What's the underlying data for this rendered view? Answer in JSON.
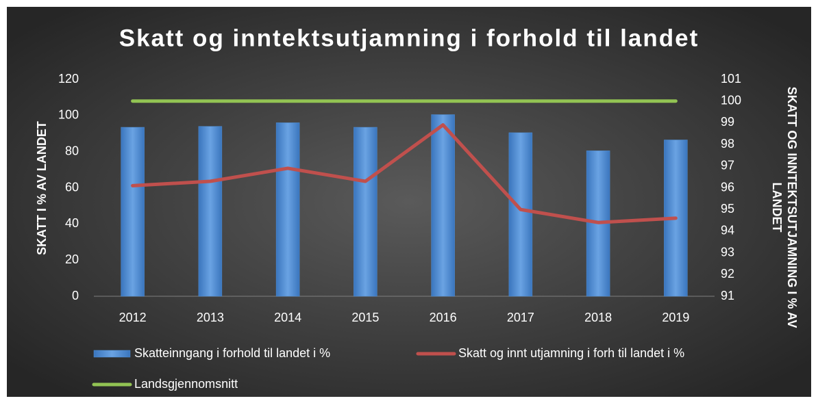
{
  "chart_data": {
    "type": "bar",
    "title": "Skatt og inntektsutjamning i forhold til landet",
    "y_label": "SKATT I % AV LANDET",
    "y2_label": "SKATT OG INNTEKTSUTJAMNING I % AV LANDET",
    "categories": [
      "2012",
      "2013",
      "2014",
      "2015",
      "2016",
      "2017",
      "2018",
      "2019"
    ],
    "series": [
      {
        "name": "Skatteinngang i forhold til landet i %",
        "type": "bar",
        "axis": "y",
        "color": "#4f8fd6",
        "values": [
          93.5,
          94,
          96,
          93.5,
          100.5,
          90.5,
          80.5,
          86.5
        ]
      },
      {
        "name": "Skatt og innt utjamning i forh til landet i %",
        "type": "line",
        "axis": "y2",
        "color": "#c0504d",
        "values": [
          96.1,
          96.3,
          96.9,
          96.3,
          98.9,
          95.0,
          94.4,
          94.6
        ]
      },
      {
        "name": "Landsgjennomsnitt",
        "type": "line",
        "axis": "y2",
        "color": "#92c353",
        "values": [
          100,
          100,
          100,
          100,
          100,
          100,
          100,
          100
        ]
      }
    ],
    "ylim": [
      0,
      120
    ],
    "yticks": [
      0,
      20,
      40,
      60,
      80,
      100,
      120
    ],
    "y2lim": [
      91,
      101
    ],
    "y2ticks": [
      91,
      92,
      93,
      94,
      95,
      96,
      97,
      98,
      99,
      100,
      101
    ],
    "legend": "bottom"
  }
}
